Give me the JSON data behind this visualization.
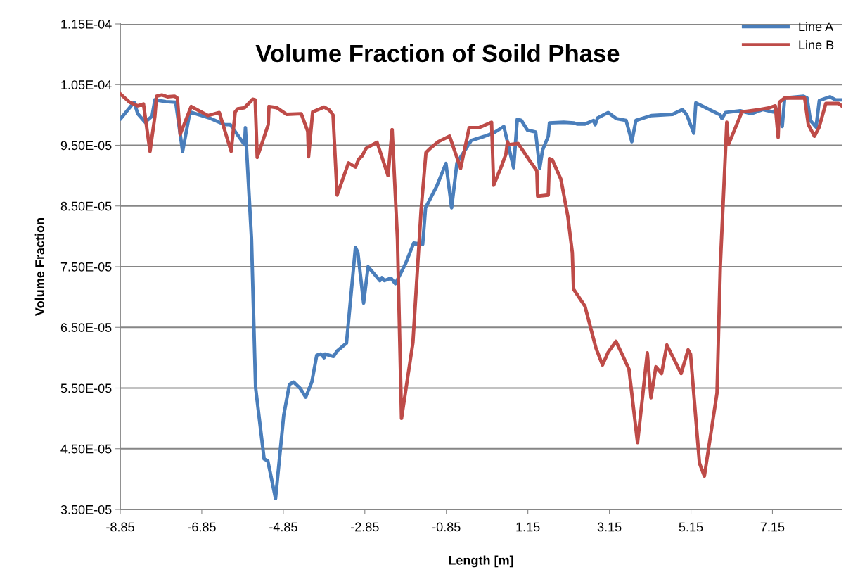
{
  "chart_data": {
    "type": "line",
    "title": "Volume Fraction of Soild Phase",
    "xlabel": "Length [m]",
    "ylabel": "Volume Fraction",
    "xlim": [
      -8.85,
      8.85
    ],
    "xticks": [
      -8.85,
      -6.85,
      -4.85,
      -2.85,
      -0.85,
      1.15,
      3.15,
      5.15,
      7.15
    ],
    "ylim": [
      3.5e-05,
      0.000115
    ],
    "yticks": [
      {
        "value": 3.5e-05,
        "label": "3.50E-05"
      },
      {
        "value": 4.5e-05,
        "label": "4.50E-05"
      },
      {
        "value": 5.5e-05,
        "label": "5.50E-05"
      },
      {
        "value": 6.5e-05,
        "label": "6.50E-05"
      },
      {
        "value": 7.5e-05,
        "label": "7.50E-05"
      },
      {
        "value": 8.5e-05,
        "label": "8.50E-05"
      },
      {
        "value": 9.5e-05,
        "label": "9.50E-05"
      },
      {
        "value": 0.000105,
        "label": "1.05E-04"
      },
      {
        "value": 0.000115,
        "label": "1.15E-04"
      }
    ],
    "grid": "y",
    "legend": "top right",
    "marker": "none",
    "line_style": "solid",
    "series": [
      {
        "name": "Line A",
        "color": "#4a7ebb",
        "x": [
          -8.85,
          -8.51,
          -8.42,
          -8.24,
          -8.07,
          -8.0,
          -7.73,
          -7.49,
          -7.32,
          -7.14,
          -6.66,
          -6.28,
          -6.15,
          -5.8,
          -5.78,
          -5.63,
          -5.53,
          -5.32,
          -5.23,
          -5.04,
          -4.84,
          -4.7,
          -4.6,
          -4.43,
          -4.3,
          -4.15,
          -4.03,
          -3.93,
          -3.85,
          -3.83,
          -3.62,
          -3.53,
          -3.3,
          -3.08,
          -3.02,
          -2.88,
          -2.77,
          -2.48,
          -2.43,
          -2.37,
          -2.21,
          -2.1,
          -1.85,
          -1.65,
          -1.43,
          -1.36,
          -1.09,
          -0.86,
          -0.72,
          -0.59,
          -0.24,
          0.09,
          0.3,
          0.56,
          0.8,
          0.89,
          0.99,
          1.14,
          1.34,
          1.44,
          1.51,
          1.65,
          1.68,
          2.03,
          2.27,
          2.37,
          2.55,
          2.76,
          2.8,
          2.86,
          3.12,
          3.32,
          3.56,
          3.7,
          3.8,
          4.18,
          4.7,
          4.94,
          5.05,
          5.22,
          5.27,
          5.87,
          5.91,
          6.0,
          6.36,
          6.63,
          6.91,
          7.17,
          7.25,
          7.39,
          7.45,
          7.91,
          8.0,
          8.08,
          8.22,
          8.3,
          8.56,
          8.7,
          8.85
        ],
        "values": [
          9.93e-05,
          0.0001021,
          0.0001002,
          9.88e-05,
          9.98e-05,
          0.0001025,
          0.0001022,
          0.0001021,
          9.4e-05,
          0.0001005,
          9.95e-05,
          9.84e-05,
          9.84e-05,
          9.51e-05,
          9.79e-05,
          7.96e-05,
          5.51e-05,
          4.33e-05,
          4.3e-05,
          3.68e-05,
          5.05e-05,
          5.56e-05,
          5.6e-05,
          5.49e-05,
          5.35e-05,
          5.6e-05,
          6.04e-05,
          6.06e-05,
          6e-05,
          6.06e-05,
          6.02e-05,
          6.11e-05,
          6.24e-05,
          7.82e-05,
          7.73e-05,
          6.9e-05,
          7.5e-05,
          7.27e-05,
          7.32e-05,
          7.27e-05,
          7.31e-05,
          7.22e-05,
          7.55e-05,
          7.89e-05,
          7.87e-05,
          8.47e-05,
          8.82e-05,
          9.2e-05,
          8.47e-05,
          9.21e-05,
          9.58e-05,
          9.65e-05,
          9.7e-05,
          9.81e-05,
          9.13e-05,
          9.93e-05,
          9.91e-05,
          9.75e-05,
          9.72e-05,
          9.12e-05,
          9.42e-05,
          9.65e-05,
          9.87e-05,
          9.88e-05,
          9.87e-05,
          9.85e-05,
          9.85e-05,
          9.91e-05,
          9.84e-05,
          9.95e-05,
          0.0001004,
          9.94e-05,
          9.91e-05,
          9.56e-05,
          9.91e-05,
          9.99e-05,
          0.0001001,
          0.0001009,
          0.0001,
          9.7e-05,
          0.000102,
          0.0001,
          9.94e-05,
          0.0001004,
          0.0001007,
          0.0001002,
          0.0001009,
          0.0001005,
          0.000101,
          9.81e-05,
          0.0001028,
          0.0001031,
          0.0001028,
          9.91e-05,
          9.8e-05,
          0.0001024,
          0.000103,
          0.0001025,
          0.0001025
        ]
      },
      {
        "name": "Line B",
        "color": "#be4b48",
        "x": [
          -8.85,
          -8.62,
          -8.42,
          -8.28,
          -8.12,
          -8.0,
          -7.96,
          -7.83,
          -7.69,
          -7.52,
          -7.45,
          -7.38,
          -7.11,
          -6.7,
          -6.42,
          -6.13,
          -6.03,
          -5.97,
          -5.8,
          -5.6,
          -5.54,
          -5.49,
          -5.22,
          -5.2,
          -5.01,
          -4.77,
          -4.41,
          -4.25,
          -4.23,
          -4.13,
          -3.85,
          -3.72,
          -3.63,
          -3.53,
          -3.25,
          -3.08,
          -3.0,
          -2.91,
          -2.82,
          -2.55,
          -2.28,
          -2.18,
          -2.05,
          -1.95,
          -1.67,
          -1.47,
          -1.35,
          -1.26,
          -1.05,
          -0.77,
          -0.5,
          -0.29,
          -0.05,
          0.26,
          0.31,
          0.51,
          0.61,
          0.65,
          0.68,
          0.91,
          1.2,
          1.37,
          1.39,
          1.65,
          1.68,
          1.75,
          1.96,
          2.13,
          2.24,
          2.27,
          2.55,
          2.82,
          2.98,
          3.12,
          3.31,
          3.46,
          3.63,
          3.84,
          4.08,
          4.17,
          4.29,
          4.43,
          4.56,
          4.91,
          5.08,
          5.14,
          5.36,
          5.48,
          5.79,
          5.87,
          6.03,
          6.07,
          6.37,
          6.39,
          6.84,
          7.08,
          7.22,
          7.29,
          7.32,
          7.45,
          7.94,
          8.03,
          8.18,
          8.29,
          8.46,
          8.77,
          8.85
        ],
        "values": [
          0.0001035,
          0.0001021,
          0.0001015,
          0.0001018,
          9.4e-05,
          9.98e-05,
          0.0001031,
          0.0001033,
          0.000103,
          0.0001031,
          0.0001028,
          9.68e-05,
          0.0001014,
          9.99e-05,
          0.0001004,
          9.4e-05,
          0.0001005,
          0.000101,
          0.0001012,
          0.0001026,
          0.0001025,
          9.3e-05,
          9.84e-05,
          0.0001014,
          0.0001012,
          0.0001001,
          0.0001002,
          9.73e-05,
          9.31e-05,
          0.0001005,
          0.0001013,
          0.0001008,
          0.0001,
          8.68e-05,
          9.21e-05,
          9.14e-05,
          9.27e-05,
          9.33e-05,
          9.45e-05,
          9.55e-05,
          9e-05,
          9.76e-05,
          7.96e-05,
          5e-05,
          6.25e-05,
          8.43e-05,
          9.38e-05,
          9.44e-05,
          9.56e-05,
          9.65e-05,
          9.12e-05,
          9.79e-05,
          9.79e-05,
          9.88e-05,
          8.84e-05,
          9.17e-05,
          9.35e-05,
          9.56e-05,
          9.51e-05,
          9.53e-05,
          9.24e-05,
          9.08e-05,
          8.66e-05,
          8.68e-05,
          9.28e-05,
          9.26e-05,
          8.94e-05,
          8.33e-05,
          7.73e-05,
          7.13e-05,
          6.85e-05,
          6.16e-05,
          5.88e-05,
          6.09e-05,
          6.27e-05,
          6.06e-05,
          5.81e-05,
          4.6e-05,
          6.08e-05,
          5.34e-05,
          5.85e-05,
          5.74e-05,
          6.21e-05,
          5.74e-05,
          6.13e-05,
          6.06e-05,
          4.26e-05,
          4.05e-05,
          5.42e-05,
          7.5e-05,
          9.88e-05,
          9.51e-05,
          0.0001,
          0.0001005,
          0.0001009,
          0.0001012,
          0.0001015,
          9.63e-05,
          0.0001021,
          0.0001028,
          0.0001028,
          9.84e-05,
          9.65e-05,
          9.79e-05,
          0.0001019,
          0.0001019,
          0.0001015
        ]
      }
    ]
  }
}
